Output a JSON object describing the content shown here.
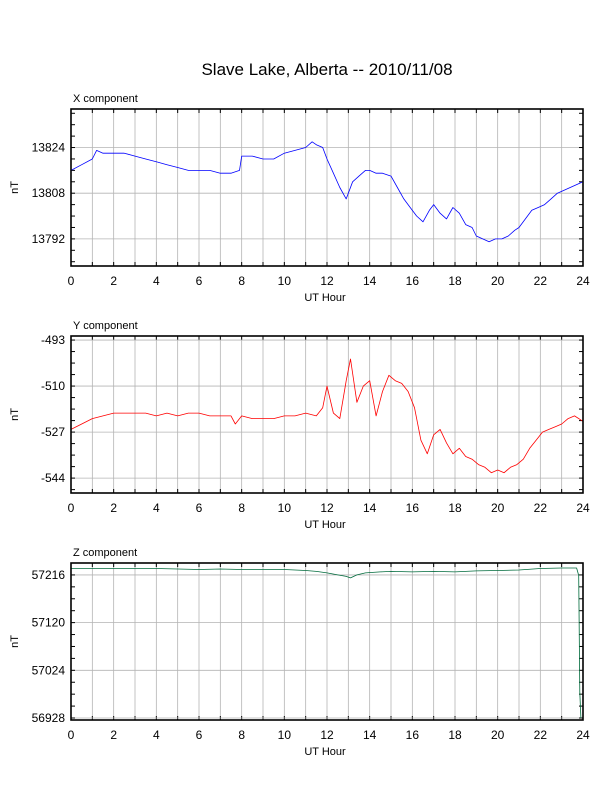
{
  "title": "Slave Lake, Alberta -- 2010/11/08",
  "chart_data": [
    {
      "type": "line",
      "title": "X component",
      "xlabel": "UT Hour",
      "ylabel": "nT",
      "color": "#0000ff",
      "xlim": [
        0,
        24
      ],
      "ylim": [
        13782.5,
        13837.5
      ],
      "xticks": [
        "0",
        "2",
        "4",
        "6",
        "8",
        "10",
        "12",
        "14",
        "16",
        "18",
        "20",
        "22",
        "24"
      ],
      "yticks": [
        "13824",
        "13808",
        "13792"
      ],
      "ytick_values": [
        13824,
        13808,
        13792
      ],
      "grid": true,
      "x": [
        0,
        0.5,
        1,
        1.2,
        1.5,
        2,
        2.5,
        3,
        3.5,
        4,
        4.5,
        5,
        5.5,
        6,
        6.5,
        7,
        7.5,
        7.9,
        8,
        8.5,
        9,
        9.5,
        10,
        10.5,
        11,
        11.3,
        11.5,
        11.8,
        12,
        12.3,
        12.6,
        12.9,
        13.2,
        13.5,
        13.8,
        14,
        14.3,
        14.6,
        15,
        15.3,
        15.6,
        15.9,
        16.2,
        16.5,
        16.8,
        17,
        17.3,
        17.6,
        17.9,
        18.2,
        18.5,
        18.8,
        19,
        19.3,
        19.6,
        19.9,
        20.2,
        20.5,
        20.8,
        21,
        21.3,
        21.6,
        21.9,
        22.2,
        22.5,
        22.8,
        23.1,
        23.4,
        23.7,
        24
      ],
      "values": [
        13816,
        13818,
        13820,
        13823,
        13822,
        13822,
        13822,
        13821,
        13820,
        13819,
        13818,
        13817,
        13816,
        13816,
        13816,
        13815,
        13815,
        13816,
        13821,
        13821,
        13820,
        13820,
        13822,
        13823,
        13824,
        13826,
        13825,
        13824,
        13820,
        13815,
        13810,
        13806,
        13812,
        13814,
        13816,
        13816,
        13815,
        13815,
        13814,
        13810,
        13806,
        13803,
        13800,
        13798,
        13802,
        13804,
        13801,
        13799,
        13803,
        13801,
        13797,
        13796,
        13793,
        13792,
        13791,
        13792,
        13792,
        13793,
        13795,
        13796,
        13799,
        13802,
        13803,
        13804,
        13806,
        13808,
        13809,
        13810,
        13811,
        13812
      ]
    },
    {
      "type": "line",
      "title": "Y component",
      "xlabel": "UT Hour",
      "ylabel": "nT",
      "color": "#ff0000",
      "xlim": [
        0,
        24
      ],
      "ylim": [
        -549.5,
        -491.5
      ],
      "xticks": [
        "0",
        "2",
        "4",
        "6",
        "8",
        "10",
        "12",
        "14",
        "16",
        "18",
        "20",
        "22",
        "24"
      ],
      "yticks": [
        "-493",
        "-510",
        "-527",
        "-544"
      ],
      "ytick_values": [
        -493,
        -510,
        -527,
        -544
      ],
      "grid": true,
      "x": [
        0,
        0.5,
        1,
        1.5,
        2,
        2.5,
        3,
        3.5,
        4,
        4.5,
        5,
        5.5,
        6,
        6.5,
        7,
        7.5,
        7.7,
        8,
        8.5,
        9,
        9.5,
        10,
        10.5,
        11,
        11.5,
        11.8,
        12,
        12.3,
        12.6,
        12.9,
        13.1,
        13.4,
        13.7,
        14,
        14.3,
        14.6,
        14.9,
        15.2,
        15.5,
        15.8,
        16.1,
        16.4,
        16.7,
        17,
        17.3,
        17.6,
        17.9,
        18.2,
        18.5,
        18.8,
        19.1,
        19.4,
        19.7,
        20,
        20.3,
        20.6,
        20.9,
        21.2,
        21.5,
        21.8,
        22.1,
        22.4,
        22.7,
        23,
        23.3,
        23.6,
        24
      ],
      "values": [
        -526,
        -524,
        -522,
        -521,
        -520,
        -520,
        -520,
        -520,
        -521,
        -520,
        -521,
        -520,
        -520,
        -521,
        -521,
        -521,
        -524,
        -521,
        -522,
        -522,
        -522,
        -521,
        -521,
        -520,
        -521,
        -518,
        -510,
        -520,
        -522,
        -508,
        -500,
        -516,
        -510,
        -508,
        -521,
        -512,
        -506,
        -508,
        -509,
        -512,
        -518,
        -530,
        -535,
        -528,
        -526,
        -531,
        -535,
        -533,
        -536,
        -537,
        -539,
        -540,
        -542,
        -541,
        -542,
        -540,
        -539,
        -537,
        -533,
        -530,
        -527,
        -526,
        -525,
        -524,
        -522,
        -521,
        -523
      ]
    },
    {
      "type": "line",
      "title": "Z component",
      "xlabel": "UT Hour",
      "ylabel": "nT",
      "color": "#006b3c",
      "xlim": [
        0,
        24
      ],
      "ylim": [
        56924,
        57240
      ],
      "xticks": [
        "0",
        "2",
        "4",
        "6",
        "8",
        "10",
        "12",
        "14",
        "16",
        "18",
        "20",
        "22",
        "24"
      ],
      "yticks": [
        "57216",
        "57120",
        "57024",
        "56928"
      ],
      "ytick_values": [
        57216,
        57120,
        57024,
        56928
      ],
      "grid": true,
      "x": [
        0,
        1,
        2,
        3,
        4,
        5,
        6,
        7,
        8,
        9,
        10,
        11,
        11.5,
        12,
        12.5,
        12.9,
        13.1,
        13.4,
        13.8,
        14.5,
        15,
        16,
        17,
        18,
        19,
        20,
        21,
        22,
        23,
        23.7,
        23.8,
        23.85,
        23.9
      ],
      "values": [
        57229,
        57229,
        57229,
        57229,
        57229,
        57228,
        57227,
        57228,
        57227,
        57227,
        57227,
        57225,
        57223,
        57220,
        57216,
        57213,
        57210,
        57216,
        57220,
        57222,
        57223,
        57222,
        57223,
        57222,
        57224,
        57225,
        57226,
        57229,
        57230,
        57230,
        57215,
        56980,
        56928
      ]
    }
  ]
}
